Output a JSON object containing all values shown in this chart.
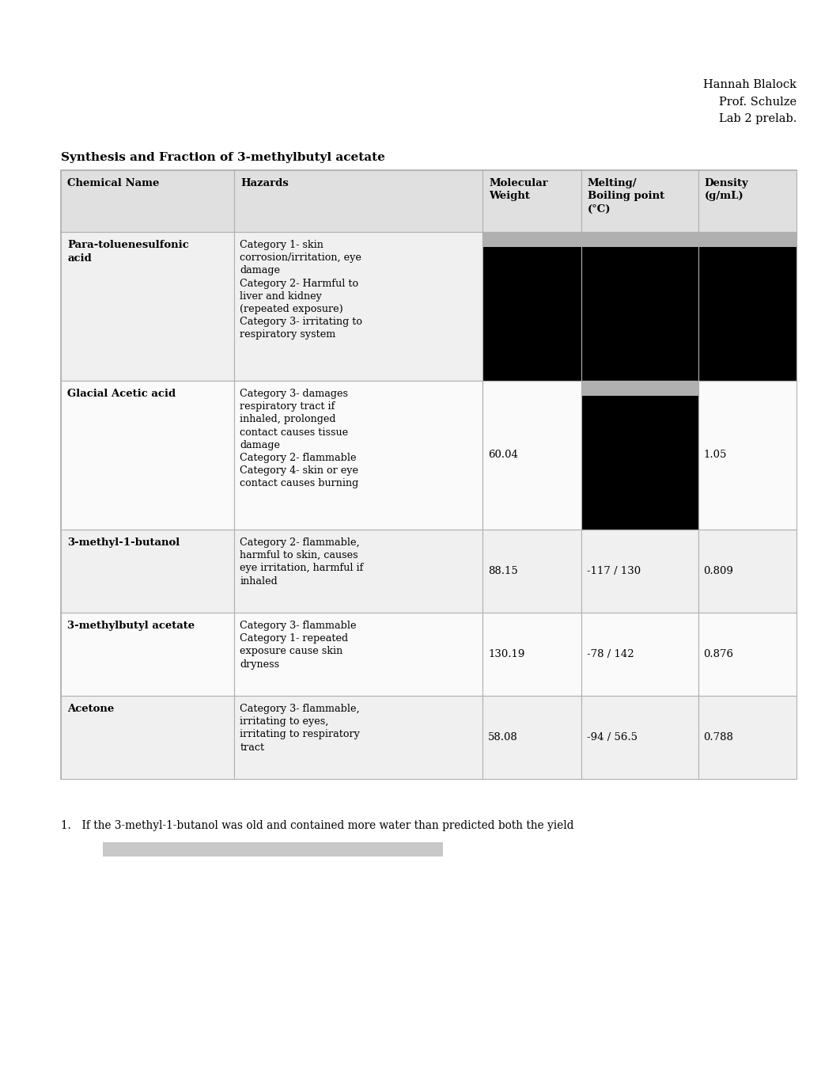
{
  "header_name": "Hannah Blalock\nProf. Schulze\nLab 2 prelab.",
  "title": "Synthesis and Fraction of 3-methylbutyl acetate",
  "col_headers": [
    "Chemical Name",
    "Hazards",
    "Molecular\nWeight",
    "Melting/\nBoiling point\n(°C)",
    "Density\n(g/mL)"
  ],
  "rows": [
    {
      "name": "Para-toluenesulfonic\nacid",
      "hazards": "Category 1- skin\ncorrosion/irritation, eye\ndamage\nCategory 2- Harmful to\nliver and kidney\n(repeated exposure)\nCategory 3- irritating to\nrespiratory system",
      "mw": "",
      "bp": "",
      "density": "",
      "black_cols": [
        2,
        3,
        4
      ]
    },
    {
      "name": "Glacial Acetic acid",
      "hazards": "Category 3- damages\nrespiratory tract if\ninhaled, prolonged\ncontact causes tissue\ndamage\nCategory 2- flammable\nCategory 4- skin or eye\ncontact causes burning",
      "mw": "60.04",
      "bp": "",
      "density": "1.05",
      "black_cols": [
        3
      ]
    },
    {
      "name": "3-methyl-1-butanol",
      "hazards": "Category 2- flammable,\nharmful to skin, causes\neye irritation, harmful if\ninhaled",
      "mw": "88.15",
      "bp": "-117 / 130",
      "density": "0.809",
      "black_cols": []
    },
    {
      "name": "3-methylbutyl acetate",
      "hazards": "Category 3- flammable\nCategory 1- repeated\nexposure cause skin\ndryness",
      "mw": "130.19",
      "bp": "-78 / 142",
      "density": "0.876",
      "black_cols": []
    },
    {
      "name": "Acetone",
      "hazards": "Category 3- flammable,\nirritating to eyes,\nirritating to respiratory\ntract",
      "mw": "58.08",
      "bp": "-94 / 56.5",
      "density": "0.788",
      "black_cols": []
    }
  ],
  "bg_color": "#ffffff",
  "border_color": "#b0b0b0",
  "row_bg_even": "#f0f0f0",
  "row_bg_odd": "#fafafa",
  "header_bg": "#e0e0e0",
  "redacted_color": "#000000",
  "redacted_top_bar": "#b0b0b0",
  "footnote_1": "1. If the 3-methyl-1-butanol was old and contained more water than predicted both the yield",
  "footnote_2_color": "#c8c8c8",
  "fig_width": 10.62,
  "fig_height": 13.77,
  "dpi": 100
}
